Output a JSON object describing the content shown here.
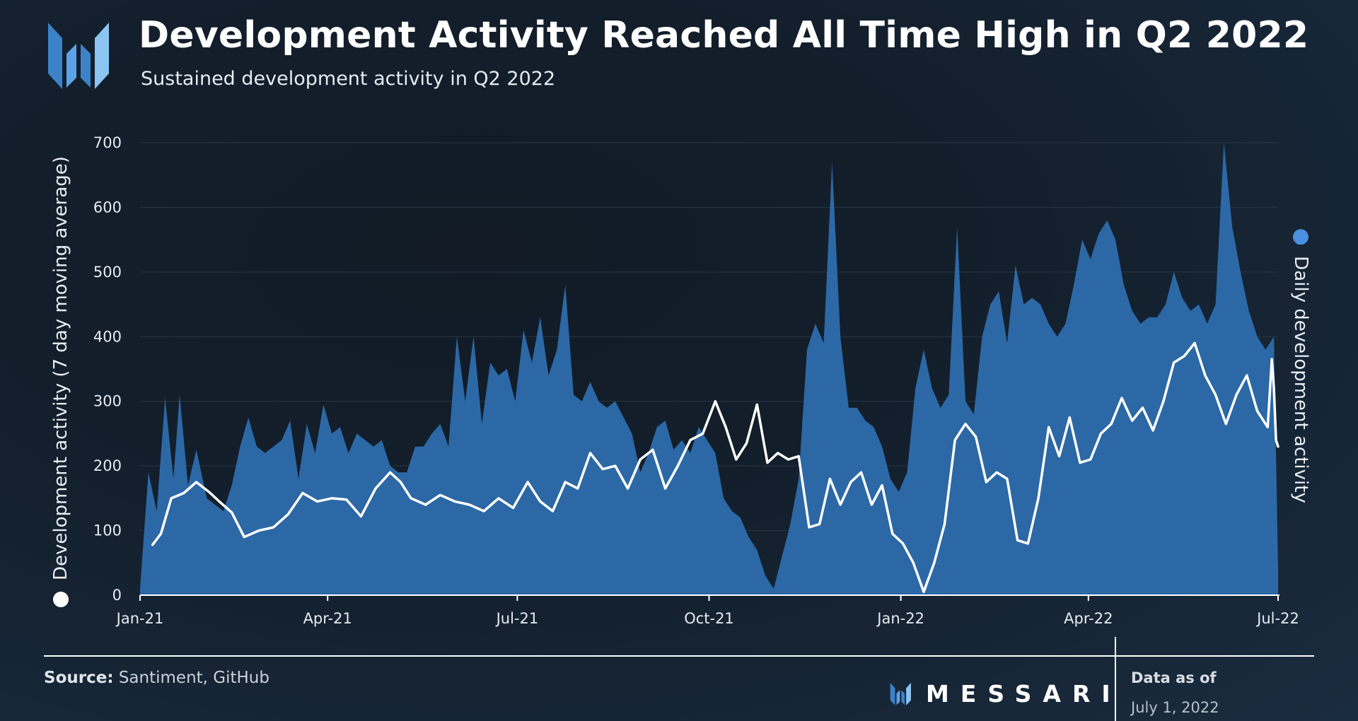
{
  "header": {
    "title": "Development Activity Reached All Time High in Q2 2022",
    "subtitle": "Sustained development activity in Q2 2022"
  },
  "footer": {
    "source_label": "Source:",
    "source_value": "Santiment, GitHub",
    "brand": "MESSARI",
    "as_of_label": "Data as of",
    "as_of_date": "July 1, 2022"
  },
  "colors": {
    "daily_fill": "#2f6fb0",
    "moving_average": "#ffffff",
    "daily_marker": "#4a8fe0"
  },
  "chart_data": {
    "type": "area",
    "title": "Development Activity Reached All Time High in Q2 2022",
    "subtitle": "Sustained development activity in Q2 2022",
    "ylabel_left": "Development activity (7 day moving average)",
    "ylabel_right": "Daily development activity",
    "x_ticks": [
      "Jan-21",
      "Apr-21",
      "Jul-21",
      "Oct-21",
      "Jan-22",
      "Apr-22",
      "Jul-22"
    ],
    "x_range": [
      "2021-01-01",
      "2022-07-01"
    ],
    "ylim": [
      0,
      700
    ],
    "y_ticks": [
      0,
      100,
      200,
      300,
      400,
      500,
      600,
      700
    ],
    "grid": true,
    "series": [
      {
        "name": "Daily development activity",
        "kind": "area",
        "points": [
          [
            "2021-01-01",
            10
          ],
          [
            "2021-01-05",
            190
          ],
          [
            "2021-01-09",
            130
          ],
          [
            "2021-01-13",
            305
          ],
          [
            "2021-01-17",
            180
          ],
          [
            "2021-01-20",
            310
          ],
          [
            "2021-01-24",
            170
          ],
          [
            "2021-01-28",
            225
          ],
          [
            "2021-02-02",
            150
          ],
          [
            "2021-02-06",
            140
          ],
          [
            "2021-02-10",
            130
          ],
          [
            "2021-02-14",
            170
          ],
          [
            "2021-02-18",
            230
          ],
          [
            "2021-02-22",
            275
          ],
          [
            "2021-02-26",
            230
          ],
          [
            "2021-03-02",
            220
          ],
          [
            "2021-03-06",
            230
          ],
          [
            "2021-03-10",
            240
          ],
          [
            "2021-03-14",
            270
          ],
          [
            "2021-03-18",
            180
          ],
          [
            "2021-03-22",
            265
          ],
          [
            "2021-03-26",
            220
          ],
          [
            "2021-03-30",
            295
          ],
          [
            "2021-04-03",
            250
          ],
          [
            "2021-04-07",
            260
          ],
          [
            "2021-04-11",
            220
          ],
          [
            "2021-04-15",
            250
          ],
          [
            "2021-04-19",
            240
          ],
          [
            "2021-04-23",
            230
          ],
          [
            "2021-04-27",
            240
          ],
          [
            "2021-05-01",
            200
          ],
          [
            "2021-05-05",
            190
          ],
          [
            "2021-05-09",
            190
          ],
          [
            "2021-05-13",
            230
          ],
          [
            "2021-05-17",
            230
          ],
          [
            "2021-05-21",
            250
          ],
          [
            "2021-05-25",
            265
          ],
          [
            "2021-05-29",
            230
          ],
          [
            "2021-06-02",
            400
          ],
          [
            "2021-06-06",
            300
          ],
          [
            "2021-06-10",
            400
          ],
          [
            "2021-06-14",
            265
          ],
          [
            "2021-06-18",
            360
          ],
          [
            "2021-06-22",
            340
          ],
          [
            "2021-06-26",
            350
          ],
          [
            "2021-06-30",
            300
          ],
          [
            "2021-07-04",
            410
          ],
          [
            "2021-07-08",
            360
          ],
          [
            "2021-07-12",
            430
          ],
          [
            "2021-07-16",
            340
          ],
          [
            "2021-07-20",
            380
          ],
          [
            "2021-07-24",
            480
          ],
          [
            "2021-07-28",
            310
          ],
          [
            "2021-08-01",
            300
          ],
          [
            "2021-08-05",
            330
          ],
          [
            "2021-08-09",
            300
          ],
          [
            "2021-08-13",
            290
          ],
          [
            "2021-08-17",
            300
          ],
          [
            "2021-08-21",
            275
          ],
          [
            "2021-08-25",
            250
          ],
          [
            "2021-08-29",
            190
          ],
          [
            "2021-09-02",
            220
          ],
          [
            "2021-09-06",
            260
          ],
          [
            "2021-09-10",
            270
          ],
          [
            "2021-09-14",
            225
          ],
          [
            "2021-09-18",
            240
          ],
          [
            "2021-09-22",
            220
          ],
          [
            "2021-09-26",
            260
          ],
          [
            "2021-09-30",
            240
          ],
          [
            "2021-10-04",
            220
          ],
          [
            "2021-10-08",
            150
          ],
          [
            "2021-10-12",
            130
          ],
          [
            "2021-10-16",
            120
          ],
          [
            "2021-10-20",
            90
          ],
          [
            "2021-10-24",
            70
          ],
          [
            "2021-10-28",
            30
          ],
          [
            "2021-11-01",
            10
          ],
          [
            "2021-11-05",
            60
          ],
          [
            "2021-11-09",
            110
          ],
          [
            "2021-11-13",
            180
          ],
          [
            "2021-11-17",
            380
          ],
          [
            "2021-11-21",
            420
          ],
          [
            "2021-11-25",
            390
          ],
          [
            "2021-11-29",
            670
          ],
          [
            "2021-12-03",
            400
          ],
          [
            "2021-12-07",
            290
          ],
          [
            "2021-12-11",
            290
          ],
          [
            "2021-12-15",
            270
          ],
          [
            "2021-12-19",
            260
          ],
          [
            "2021-12-23",
            230
          ],
          [
            "2021-12-27",
            180
          ],
          [
            "2021-12-31",
            160
          ],
          [
            "2022-01-04",
            190
          ],
          [
            "2022-01-08",
            320
          ],
          [
            "2022-01-12",
            380
          ],
          [
            "2022-01-16",
            320
          ],
          [
            "2022-01-20",
            290
          ],
          [
            "2022-01-24",
            310
          ],
          [
            "2022-01-28",
            570
          ],
          [
            "2022-02-01",
            300
          ],
          [
            "2022-02-05",
            280
          ],
          [
            "2022-02-09",
            400
          ],
          [
            "2022-02-13",
            450
          ],
          [
            "2022-02-17",
            470
          ],
          [
            "2022-02-21",
            390
          ],
          [
            "2022-02-25",
            510
          ],
          [
            "2022-03-01",
            450
          ],
          [
            "2022-03-05",
            460
          ],
          [
            "2022-03-09",
            450
          ],
          [
            "2022-03-13",
            420
          ],
          [
            "2022-03-17",
            400
          ],
          [
            "2022-03-21",
            420
          ],
          [
            "2022-03-25",
            480
          ],
          [
            "2022-03-29",
            550
          ],
          [
            "2022-04-02",
            520
          ],
          [
            "2022-04-06",
            560
          ],
          [
            "2022-04-10",
            580
          ],
          [
            "2022-04-14",
            550
          ],
          [
            "2022-04-18",
            480
          ],
          [
            "2022-04-22",
            440
          ],
          [
            "2022-04-26",
            420
          ],
          [
            "2022-04-30",
            430
          ],
          [
            "2022-05-04",
            430
          ],
          [
            "2022-05-08",
            450
          ],
          [
            "2022-05-12",
            500
          ],
          [
            "2022-05-16",
            460
          ],
          [
            "2022-05-20",
            440
          ],
          [
            "2022-05-24",
            450
          ],
          [
            "2022-05-28",
            420
          ],
          [
            "2022-06-01",
            450
          ],
          [
            "2022-06-05",
            700
          ],
          [
            "2022-06-09",
            570
          ],
          [
            "2022-06-13",
            500
          ],
          [
            "2022-06-17",
            440
          ],
          [
            "2022-06-21",
            400
          ],
          [
            "2022-06-25",
            380
          ],
          [
            "2022-06-29",
            400
          ],
          [
            "2022-07-01",
            40
          ]
        ]
      },
      {
        "name": "Development activity (7 day moving average)",
        "kind": "line",
        "points": [
          [
            "2021-01-07",
            78
          ],
          [
            "2021-01-11",
            95
          ],
          [
            "2021-01-16",
            150
          ],
          [
            "2021-01-22",
            158
          ],
          [
            "2021-01-28",
            175
          ],
          [
            "2021-02-03",
            160
          ],
          [
            "2021-02-08",
            145
          ],
          [
            "2021-02-14",
            128
          ],
          [
            "2021-02-20",
            90
          ],
          [
            "2021-02-27",
            100
          ],
          [
            "2021-03-06",
            105
          ],
          [
            "2021-03-13",
            125
          ],
          [
            "2021-03-20",
            158
          ],
          [
            "2021-03-27",
            145
          ],
          [
            "2021-04-03",
            150
          ],
          [
            "2021-04-10",
            148
          ],
          [
            "2021-04-17",
            122
          ],
          [
            "2021-04-24",
            165
          ],
          [
            "2021-05-01",
            190
          ],
          [
            "2021-05-06",
            175
          ],
          [
            "2021-05-11",
            150
          ],
          [
            "2021-05-18",
            140
          ],
          [
            "2021-05-25",
            155
          ],
          [
            "2021-06-01",
            145
          ],
          [
            "2021-06-08",
            140
          ],
          [
            "2021-06-15",
            130
          ],
          [
            "2021-06-22",
            150
          ],
          [
            "2021-06-29",
            135
          ],
          [
            "2021-07-06",
            175
          ],
          [
            "2021-07-12",
            145
          ],
          [
            "2021-07-18",
            130
          ],
          [
            "2021-07-24",
            175
          ],
          [
            "2021-07-30",
            165
          ],
          [
            "2021-08-05",
            220
          ],
          [
            "2021-08-11",
            195
          ],
          [
            "2021-08-17",
            200
          ],
          [
            "2021-08-23",
            165
          ],
          [
            "2021-08-29",
            210
          ],
          [
            "2021-09-04",
            225
          ],
          [
            "2021-09-10",
            165
          ],
          [
            "2021-09-16",
            200
          ],
          [
            "2021-09-22",
            240
          ],
          [
            "2021-09-28",
            250
          ],
          [
            "2021-10-04",
            300
          ],
          [
            "2021-10-09",
            260
          ],
          [
            "2021-10-14",
            210
          ],
          [
            "2021-10-19",
            235
          ],
          [
            "2021-10-24",
            295
          ],
          [
            "2021-10-29",
            205
          ],
          [
            "2021-11-03",
            220
          ],
          [
            "2021-11-08",
            210
          ],
          [
            "2021-11-13",
            215
          ],
          [
            "2021-11-18",
            105
          ],
          [
            "2021-11-23",
            110
          ],
          [
            "2021-11-28",
            180
          ],
          [
            "2021-12-03",
            140
          ],
          [
            "2021-12-08",
            175
          ],
          [
            "2021-12-13",
            190
          ],
          [
            "2021-12-18",
            140
          ],
          [
            "2021-12-23",
            170
          ],
          [
            "2021-12-28",
            95
          ],
          [
            "2022-01-02",
            80
          ],
          [
            "2022-01-07",
            50
          ],
          [
            "2022-01-12",
            5
          ],
          [
            "2022-01-17",
            50
          ],
          [
            "2022-01-22",
            110
          ],
          [
            "2022-01-27",
            240
          ],
          [
            "2022-02-01",
            265
          ],
          [
            "2022-02-06",
            245
          ],
          [
            "2022-02-11",
            175
          ],
          [
            "2022-02-16",
            190
          ],
          [
            "2022-02-21",
            180
          ],
          [
            "2022-02-26",
            85
          ],
          [
            "2022-03-03",
            80
          ],
          [
            "2022-03-08",
            150
          ],
          [
            "2022-03-13",
            260
          ],
          [
            "2022-03-18",
            215
          ],
          [
            "2022-03-23",
            275
          ],
          [
            "2022-03-28",
            205
          ],
          [
            "2022-04-02",
            210
          ],
          [
            "2022-04-07",
            250
          ],
          [
            "2022-04-12",
            265
          ],
          [
            "2022-04-17",
            305
          ],
          [
            "2022-04-22",
            270
          ],
          [
            "2022-04-27",
            290
          ],
          [
            "2022-05-02",
            255
          ],
          [
            "2022-05-07",
            300
          ],
          [
            "2022-05-12",
            360
          ],
          [
            "2022-05-17",
            370
          ],
          [
            "2022-05-22",
            390
          ],
          [
            "2022-05-27",
            340
          ],
          [
            "2022-06-01",
            310
          ],
          [
            "2022-06-06",
            265
          ],
          [
            "2022-06-11",
            310
          ],
          [
            "2022-06-16",
            340
          ],
          [
            "2022-06-21",
            285
          ],
          [
            "2022-06-26",
            260
          ],
          [
            "2022-06-28",
            365
          ],
          [
            "2022-06-29",
            320
          ],
          [
            "2022-06-30",
            240
          ],
          [
            "2022-07-01",
            230
          ]
        ]
      }
    ]
  }
}
